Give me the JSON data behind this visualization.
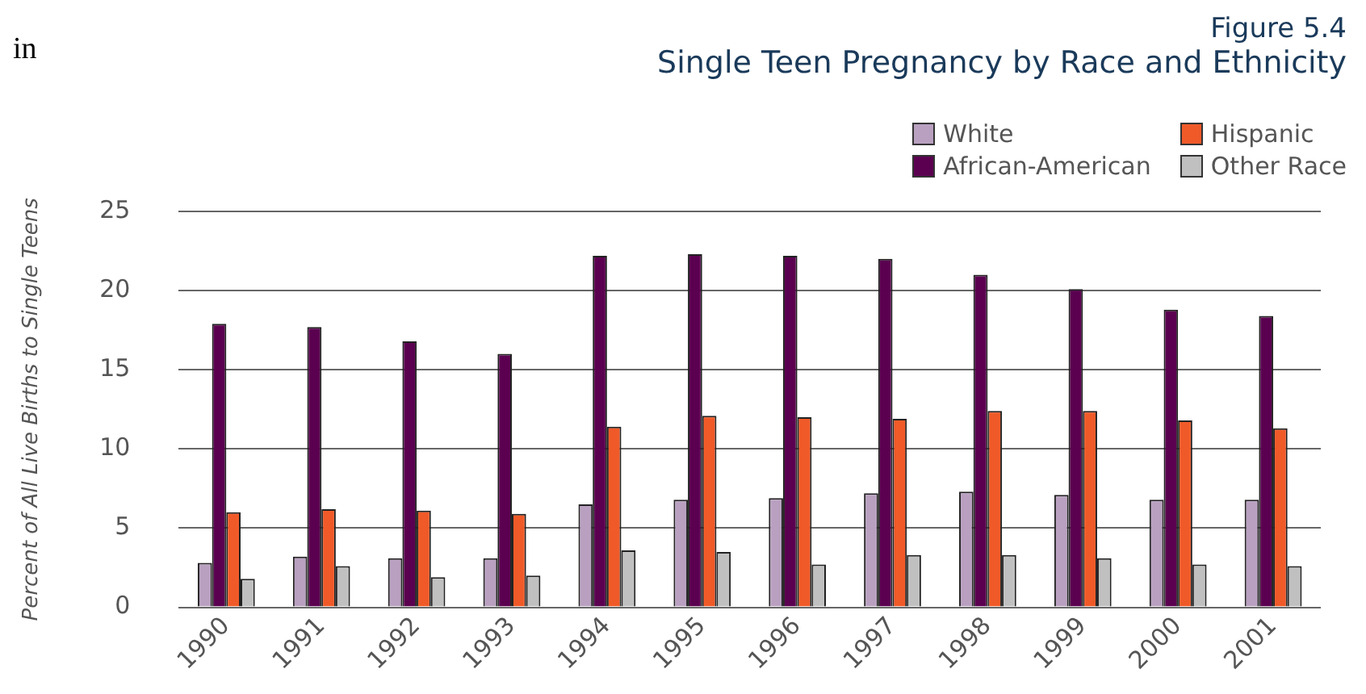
{
  "chart_data": {
    "type": "bar",
    "title": "Single Teen Pregnancy by Race and Ethnicity",
    "subtitle": "Figure 5.4",
    "ylabel": "Percent of All Live Births to Single Teens",
    "annotations": [
      "in"
    ],
    "categories": [
      "1990",
      "1991",
      "1992",
      "1993",
      "1994",
      "1995",
      "1996",
      "1997",
      "1998",
      "1999",
      "2000",
      "2001"
    ],
    "series": [
      {
        "name": "White",
        "color": "#b9a0c0",
        "values": [
          2.8,
          3.2,
          3.1,
          3.1,
          6.5,
          6.8,
          6.9,
          7.2,
          7.3,
          7.1,
          6.8,
          6.8
        ]
      },
      {
        "name": "African-American",
        "color": "#5b0050",
        "values": [
          17.9,
          17.7,
          16.8,
          16.0,
          22.2,
          22.3,
          22.2,
          22.0,
          21.0,
          20.1,
          18.8,
          18.4
        ]
      },
      {
        "name": "Hispanic",
        "color": "#f05a28",
        "values": [
          6.0,
          6.2,
          6.1,
          5.9,
          11.4,
          12.1,
          12.0,
          11.9,
          12.4,
          12.4,
          11.8,
          11.3
        ]
      },
      {
        "name": "Other Race",
        "color": "#c0c0c0",
        "values": [
          1.8,
          2.6,
          1.9,
          2.0,
          3.6,
          3.5,
          2.7,
          3.3,
          3.3,
          3.1,
          2.7,
          2.6
        ]
      }
    ],
    "ylim": [
      0,
      25
    ],
    "yticks": [
      0,
      5,
      10,
      15,
      20,
      25
    ],
    "grid": "y",
    "legend": "top right"
  }
}
